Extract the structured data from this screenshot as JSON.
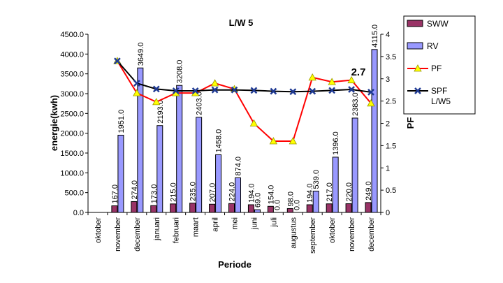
{
  "chart_data": {
    "type": "bar",
    "title": "L/W 5",
    "xlabel": "Periode",
    "ylabel": "energie(kwh)",
    "y2label": "PF",
    "ylim": [
      0,
      4500
    ],
    "y2lim": [
      0,
      4
    ],
    "yticks": [
      "0.0",
      "500.0",
      "1000.0",
      "1500.0",
      "2000.0",
      "2500.0",
      "3000.0",
      "3500.0",
      "4000.0",
      "4500.0"
    ],
    "y2ticks": [
      "0",
      "0.5",
      "1",
      "1.5",
      "2",
      "2.5",
      "3",
      "3.5",
      "4"
    ],
    "categories": [
      "oktober",
      "november",
      "december",
      "januari",
      "februari",
      "maart",
      "april",
      "mei",
      "juni",
      "juli",
      "augustus",
      "september",
      "oktober",
      "november",
      "december"
    ],
    "series": [
      {
        "name": "SWW",
        "kind": "bar",
        "axis": "left",
        "color": "#993366",
        "values": [
          null,
          167.0,
          274.0,
          173.0,
          215.0,
          235.0,
          207.0,
          224.0,
          194.0,
          154.0,
          98.0,
          194.0,
          217.0,
          220.0,
          249.0
        ],
        "labels": [
          "",
          "167.0",
          "274.0",
          "173.0",
          "215.0",
          "235.0",
          "207.0",
          "224.0",
          "194.0",
          "154.0",
          "98.0",
          "194.0",
          "217.0",
          "220.0",
          "249.0"
        ]
      },
      {
        "name": "RV",
        "kind": "bar",
        "axis": "left",
        "color": "#9999ff",
        "values": [
          null,
          1951.0,
          3649.0,
          2193.0,
          3208.0,
          2403.0,
          1458.0,
          874.0,
          69.0,
          0.0,
          0.0,
          539.0,
          1396.0,
          2383.0,
          4115.0
        ],
        "labels": [
          "",
          "1951.0",
          "3649.0",
          "2193.0",
          "3208.0",
          "2403.0",
          "1458.0",
          "874.0",
          "69.0",
          "0.0",
          "0.0",
          "539.0",
          "1396.0",
          "2383.0",
          "4115.0"
        ]
      },
      {
        "name": "PF",
        "kind": "line",
        "axis": "right",
        "color": "#ff0000",
        "marker_color": "#ffff00",
        "values": [
          null,
          3.4,
          2.68,
          2.48,
          2.68,
          2.68,
          2.9,
          2.77,
          2.0,
          1.6,
          1.6,
          3.03,
          2.93,
          2.97,
          2.45
        ]
      },
      {
        "name": "SPF L/W5",
        "legend_lines": [
          "SPF",
          "L/W5"
        ],
        "kind": "line",
        "axis": "right",
        "color": "#000000",
        "marker_color": "#1f3a93",
        "values": [
          null,
          3.4,
          2.9,
          2.77,
          2.73,
          2.73,
          2.75,
          2.75,
          2.74,
          2.72,
          2.71,
          2.72,
          2.74,
          2.76,
          2.7
        ]
      }
    ],
    "annotation": "2.7",
    "grid": false,
    "legend_position": "right"
  }
}
